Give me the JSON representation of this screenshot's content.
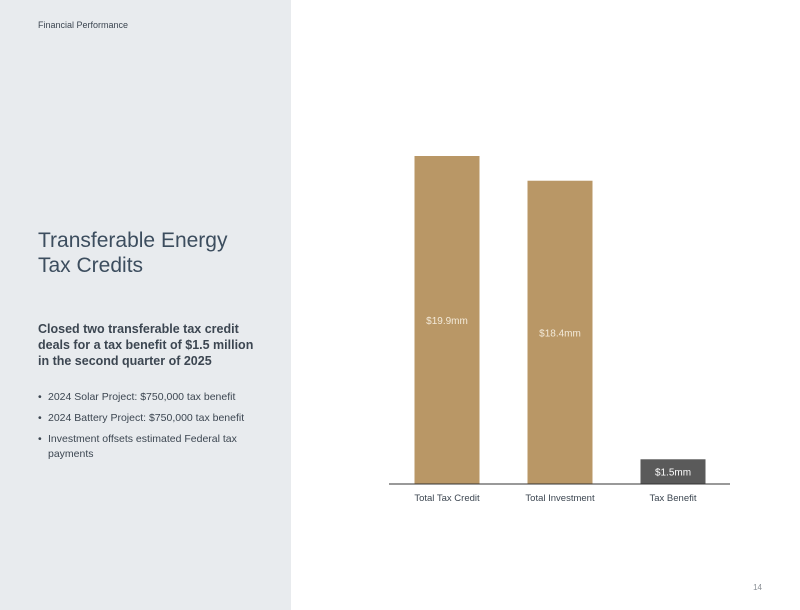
{
  "header": {
    "section": "Financial Performance"
  },
  "left": {
    "title_line1": "Transferable Energy",
    "title_line2": "Tax Credits",
    "headline": "Closed two transferable tax credit deals for a tax benefit of $1.5 million in the second quarter of 2025",
    "bullets": [
      "2024 Solar Project: $750,000 tax benefit",
      "2024 Battery Project: $750,000 tax benefit",
      "Investment offsets estimated Federal tax payments"
    ]
  },
  "chart_data": {
    "type": "bar",
    "categories": [
      "Total Tax Credit",
      "Total Investment",
      "Tax Benefit"
    ],
    "values": [
      19.9,
      18.4,
      1.5
    ],
    "data_labels": [
      "$19.9mm",
      "$18.4mm",
      "$1.5mm"
    ],
    "bar_colors": [
      "#b99766",
      "#b99766",
      "#5a5a5a"
    ],
    "label_colors": [
      "#f3ead9",
      "#f3ead9",
      "#ffffff"
    ],
    "title": "",
    "xlabel": "",
    "ylabel": "",
    "ylim": [
      0,
      19.9
    ],
    "grid": false
  },
  "footer": {
    "page_number": "14"
  },
  "colors": {
    "panel": "#e8ebee",
    "axis": "#333333",
    "tick_text": "#3c4651"
  }
}
